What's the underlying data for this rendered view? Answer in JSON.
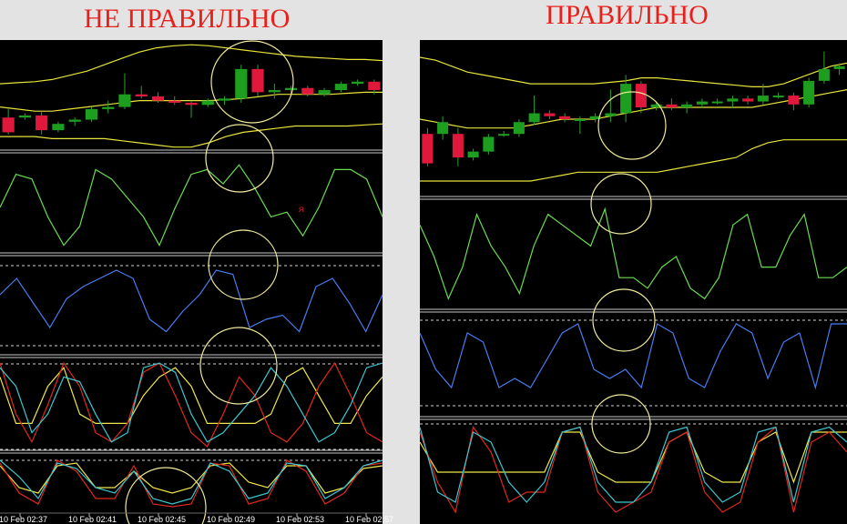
{
  "titles": {
    "wrong": "НЕ ПРАВИЛЬНО",
    "correct": "ПРАВИЛЬНО"
  },
  "colors": {
    "background": "#000000",
    "page": "#e3e3e3",
    "title": "#e8201c",
    "bull_candle": "#1e9e1e",
    "bear_candle": "#e0183c",
    "bands": "#e8e23c",
    "oscillator_green": "#6adc50",
    "oscillator_blue": "#4a7cf0",
    "stoch_red": "#e0281e",
    "stoch_cyan": "#3cc8d2",
    "stoch_yellow": "#f0e64b",
    "circle": "#f0ea9a",
    "separator": "#c8c8c8",
    "level": "#cfcfcf"
  },
  "chart_data": [
    {
      "type": "candlestick",
      "panel": "left",
      "x_tick_labels": [
        "10 Feb 02:37",
        "10 Feb 02:41",
        "10 Feb 02:45",
        "10 Feb 02:49",
        "10 Feb 02:53",
        "10 Feb 02:57"
      ],
      "marker_text": "я",
      "price": {
        "ylim": [
          0,
          100
        ],
        "candles": [
          {
            "o": 30,
            "h": 38,
            "l": 14,
            "c": 16
          },
          {
            "o": 30,
            "h": 34,
            "l": 28,
            "c": 32
          },
          {
            "o": 32,
            "h": 36,
            "l": 14,
            "c": 18
          },
          {
            "o": 18,
            "h": 26,
            "l": 16,
            "c": 24
          },
          {
            "o": 26,
            "h": 30,
            "l": 22,
            "c": 28
          },
          {
            "o": 28,
            "h": 40,
            "l": 26,
            "c": 38
          },
          {
            "o": 38,
            "h": 46,
            "l": 34,
            "c": 40
          },
          {
            "o": 40,
            "h": 72,
            "l": 38,
            "c": 52
          },
          {
            "o": 52,
            "h": 60,
            "l": 48,
            "c": 50
          },
          {
            "o": 50,
            "h": 54,
            "l": 44,
            "c": 46
          },
          {
            "o": 46,
            "h": 50,
            "l": 42,
            "c": 44
          },
          {
            "o": 44,
            "h": 46,
            "l": 30,
            "c": 42
          },
          {
            "o": 42,
            "h": 48,
            "l": 40,
            "c": 46
          },
          {
            "o": 46,
            "h": 50,
            "l": 42,
            "c": 48
          },
          {
            "o": 48,
            "h": 80,
            "l": 44,
            "c": 76
          },
          {
            "o": 76,
            "h": 80,
            "l": 50,
            "c": 54
          },
          {
            "o": 54,
            "h": 62,
            "l": 48,
            "c": 56
          },
          {
            "o": 56,
            "h": 60,
            "l": 52,
            "c": 58
          },
          {
            "o": 58,
            "h": 60,
            "l": 50,
            "c": 52
          },
          {
            "o": 52,
            "h": 58,
            "l": 50,
            "c": 56
          },
          {
            "o": 56,
            "h": 64,
            "l": 54,
            "c": 62
          },
          {
            "o": 62,
            "h": 66,
            "l": 60,
            "c": 64
          },
          {
            "o": 64,
            "h": 66,
            "l": 52,
            "c": 56
          }
        ],
        "band_upper": [
          62,
          63,
          64,
          66,
          70,
          74,
          80,
          86,
          92,
          96,
          98,
          99,
          98,
          96,
          94,
          92,
          90,
          88,
          87,
          86,
          85,
          85,
          84
        ],
        "band_middle": [
          40,
          38,
          36,
          36,
          38,
          40,
          42,
          44,
          46,
          46,
          46,
          46,
          46,
          47,
          48,
          50,
          52,
          52,
          52,
          52,
          53,
          54,
          54
        ],
        "band_lower": [
          12,
          12,
          12,
          10,
          10,
          10,
          10,
          8,
          6,
          4,
          2,
          2,
          6,
          12,
          16,
          18,
          20,
          22,
          22,
          22,
          22,
          23,
          24
        ]
      },
      "oscillator_1": {
        "ylim": [
          0,
          100
        ],
        "values": [
          50,
          85,
          80,
          40,
          10,
          30,
          90,
          80,
          60,
          40,
          10,
          50,
          85,
          90,
          75,
          95,
          70,
          40,
          45,
          20,
          50,
          90,
          90,
          80,
          40
        ]
      },
      "oscillator_2": {
        "ylim": [
          0,
          100
        ],
        "values": [
          60,
          80,
          50,
          20,
          55,
          70,
          80,
          90,
          80,
          30,
          15,
          40,
          60,
          90,
          85,
          20,
          30,
          35,
          15,
          70,
          80,
          50,
          15,
          60
        ]
      },
      "stochastic": {
        "ylim": [
          0,
          100
        ],
        "series": [
          {
            "values": [
              90,
              70,
              20,
              40,
              80,
              75,
              40,
              10,
              20,
              90,
              95,
              85,
              40,
              10,
              20,
              40,
              60,
              90,
              70,
              40,
              10,
              20,
              50,
              90,
              95
            ]
          },
          {
            "values": [
              95,
              40,
              10,
              50,
              95,
              70,
              20,
              10,
              30,
              85,
              95,
              60,
              20,
              5,
              40,
              80,
              60,
              20,
              10,
              30,
              70,
              95,
              60,
              20,
              10
            ]
          },
          {
            "values": [
              80,
              30,
              30,
              70,
              90,
              40,
              30,
              30,
              30,
              60,
              80,
              90,
              70,
              30,
              30,
              30,
              30,
              40,
              80,
              90,
              60,
              30,
              30,
              60,
              80
            ]
          }
        ]
      },
      "stochastic_2": {
        "ylim": [
          0,
          100
        ],
        "series": [
          {
            "values": [
              90,
              60,
              20,
              85,
              75,
              40,
              30,
              70,
              20,
              10,
              20,
              85,
              70,
              20,
              30,
              85,
              80,
              20,
              40,
              80,
              90
            ]
          },
          {
            "values": [
              85,
              30,
              10,
              90,
              70,
              20,
              20,
              80,
              10,
              5,
              10,
              85,
              80,
              10,
              20,
              90,
              70,
              10,
              30,
              80,
              85
            ]
          },
          {
            "values": [
              80,
              40,
              30,
              80,
              85,
              40,
              40,
              70,
              40,
              30,
              40,
              80,
              85,
              50,
              40,
              80,
              80,
              30,
              40,
              75,
              80
            ]
          }
        ]
      }
    },
    {
      "type": "candlestick",
      "panel": "right",
      "price": {
        "ylim": [
          0,
          100
        ],
        "candles": [
          {
            "o": 40,
            "h": 44,
            "l": 18,
            "c": 20
          },
          {
            "o": 40,
            "h": 52,
            "l": 36,
            "c": 48
          },
          {
            "o": 40,
            "h": 44,
            "l": 18,
            "c": 24
          },
          {
            "o": 24,
            "h": 30,
            "l": 22,
            "c": 28
          },
          {
            "o": 28,
            "h": 40,
            "l": 26,
            "c": 38
          },
          {
            "o": 40,
            "h": 42,
            "l": 38,
            "c": 40
          },
          {
            "o": 40,
            "h": 50,
            "l": 38,
            "c": 48
          },
          {
            "o": 48,
            "h": 66,
            "l": 46,
            "c": 54
          },
          {
            "o": 54,
            "h": 56,
            "l": 50,
            "c": 52
          },
          {
            "o": 52,
            "h": 54,
            "l": 48,
            "c": 50
          },
          {
            "o": 50,
            "h": 52,
            "l": 40,
            "c": 50
          },
          {
            "o": 50,
            "h": 54,
            "l": 48,
            "c": 52
          },
          {
            "o": 52,
            "h": 70,
            "l": 48,
            "c": 54
          },
          {
            "o": 54,
            "h": 80,
            "l": 48,
            "c": 74
          },
          {
            "o": 74,
            "h": 76,
            "l": 54,
            "c": 58
          },
          {
            "o": 58,
            "h": 62,
            "l": 56,
            "c": 60
          },
          {
            "o": 60,
            "h": 64,
            "l": 56,
            "c": 58
          },
          {
            "o": 58,
            "h": 62,
            "l": 54,
            "c": 60
          },
          {
            "o": 60,
            "h": 64,
            "l": 58,
            "c": 62
          },
          {
            "o": 62,
            "h": 64,
            "l": 60,
            "c": 62
          },
          {
            "o": 62,
            "h": 66,
            "l": 58,
            "c": 64
          },
          {
            "o": 64,
            "h": 66,
            "l": 60,
            "c": 62
          },
          {
            "o": 62,
            "h": 74,
            "l": 60,
            "c": 66
          },
          {
            "o": 66,
            "h": 68,
            "l": 64,
            "c": 66
          },
          {
            "o": 66,
            "h": 68,
            "l": 56,
            "c": 60
          },
          {
            "o": 60,
            "h": 78,
            "l": 58,
            "c": 76
          },
          {
            "o": 76,
            "h": 96,
            "l": 74,
            "c": 84
          },
          {
            "o": 84,
            "h": 88,
            "l": 80,
            "c": 86
          }
        ],
        "band_upper": [
          92,
          90,
          86,
          82,
          80,
          78,
          76,
          74,
          74,
          74,
          74,
          74,
          75,
          76,
          78,
          78,
          77,
          76,
          75,
          74,
          73,
          72,
          72,
          74,
          78,
          82,
          86,
          88
        ],
        "band_middle": [
          50,
          48,
          46,
          44,
          44,
          44,
          44,
          46,
          48,
          50,
          50,
          50,
          52,
          54,
          56,
          58,
          58,
          58,
          58,
          58,
          58,
          58,
          60,
          62,
          64,
          66,
          68,
          70
        ],
        "band_lower": [
          8,
          8,
          8,
          8,
          8,
          8,
          8,
          8,
          10,
          12,
          14,
          14,
          14,
          14,
          14,
          14,
          16,
          18,
          20,
          22,
          24,
          30,
          34,
          36,
          36,
          36,
          36,
          36
        ]
      },
      "oscillator_1": {
        "ylim": [
          0,
          100
        ],
        "values": [
          80,
          50,
          10,
          40,
          90,
          60,
          40,
          15,
          60,
          90,
          80,
          70,
          60,
          95,
          30,
          30,
          20,
          40,
          50,
          20,
          10,
          30,
          80,
          90,
          40,
          40,
          70,
          90,
          30,
          30,
          40
        ]
      },
      "oscillator_2": {
        "ylim": [
          0,
          100
        ],
        "values": [
          80,
          40,
          20,
          80,
          70,
          20,
          30,
          20,
          50,
          80,
          90,
          40,
          30,
          40,
          20,
          90,
          80,
          30,
          20,
          60,
          90,
          80,
          30,
          70,
          80,
          20,
          90,
          90
        ]
      },
      "stochastic": {
        "ylim": [
          0,
          100
        ],
        "series": [
          {
            "values": [
              95,
              30,
              20,
              90,
              80,
              40,
              20,
              40,
              90,
              95,
              40,
              20,
              20,
              40,
              90,
              95,
              40,
              20,
              30,
              90,
              95,
              20,
              90,
              95,
              80
            ]
          },
          {
            "values": [
              90,
              40,
              10,
              95,
              70,
              20,
              30,
              30,
              90,
              95,
              30,
              10,
              20,
              30,
              80,
              90,
              30,
              10,
              20,
              80,
              95,
              10,
              80,
              90,
              70
            ]
          },
          {
            "values": [
              80,
              50,
              50,
              50,
              50,
              50,
              50,
              50,
              90,
              90,
              50,
              40,
              40,
              40,
              80,
              90,
              50,
              40,
              40,
              80,
              90,
              40,
              90,
              90,
              90
            ]
          }
        ]
      }
    }
  ]
}
